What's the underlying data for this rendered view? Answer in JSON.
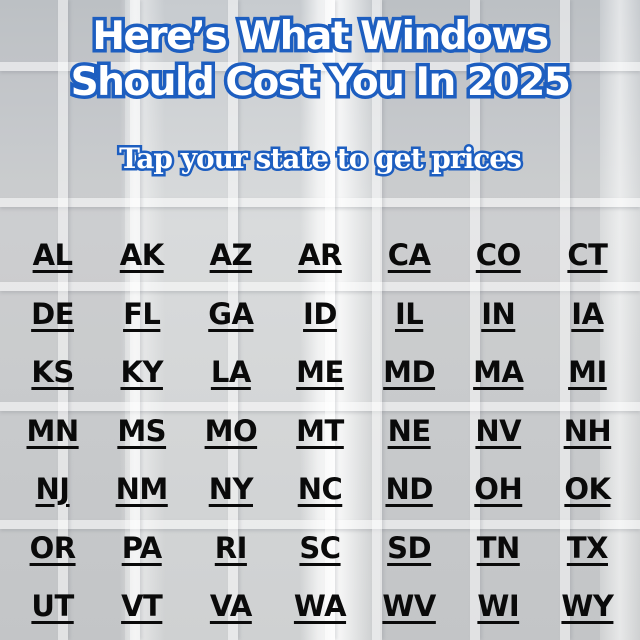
{
  "ad": {
    "headline_line1": "Here’s What Windows",
    "headline_line2": "Should Cost You In 2025",
    "subheadline": "Tap your state to get prices",
    "colors": {
      "headline_fill": "#ffffff",
      "headline_outline": "#1d5ec0",
      "state_text": "#0a0a0a"
    },
    "states": [
      "AL",
      "AK",
      "AZ",
      "AR",
      "CA",
      "CO",
      "CT",
      "DE",
      "FL",
      "GA",
      "ID",
      "IL",
      "IN",
      "IA",
      "KS",
      "KY",
      "LA",
      "ME",
      "MD",
      "MA",
      "MI",
      "MN",
      "MS",
      "MO",
      "MT",
      "NE",
      "NV",
      "NH",
      "NJ",
      "NM",
      "NY",
      "NC",
      "ND",
      "OH",
      "OK",
      "OR",
      "PA",
      "RI",
      "SC",
      "SD",
      "TN",
      "TX",
      "UT",
      "VT",
      "VA",
      "WA",
      "WV",
      "WI",
      "WY"
    ]
  }
}
